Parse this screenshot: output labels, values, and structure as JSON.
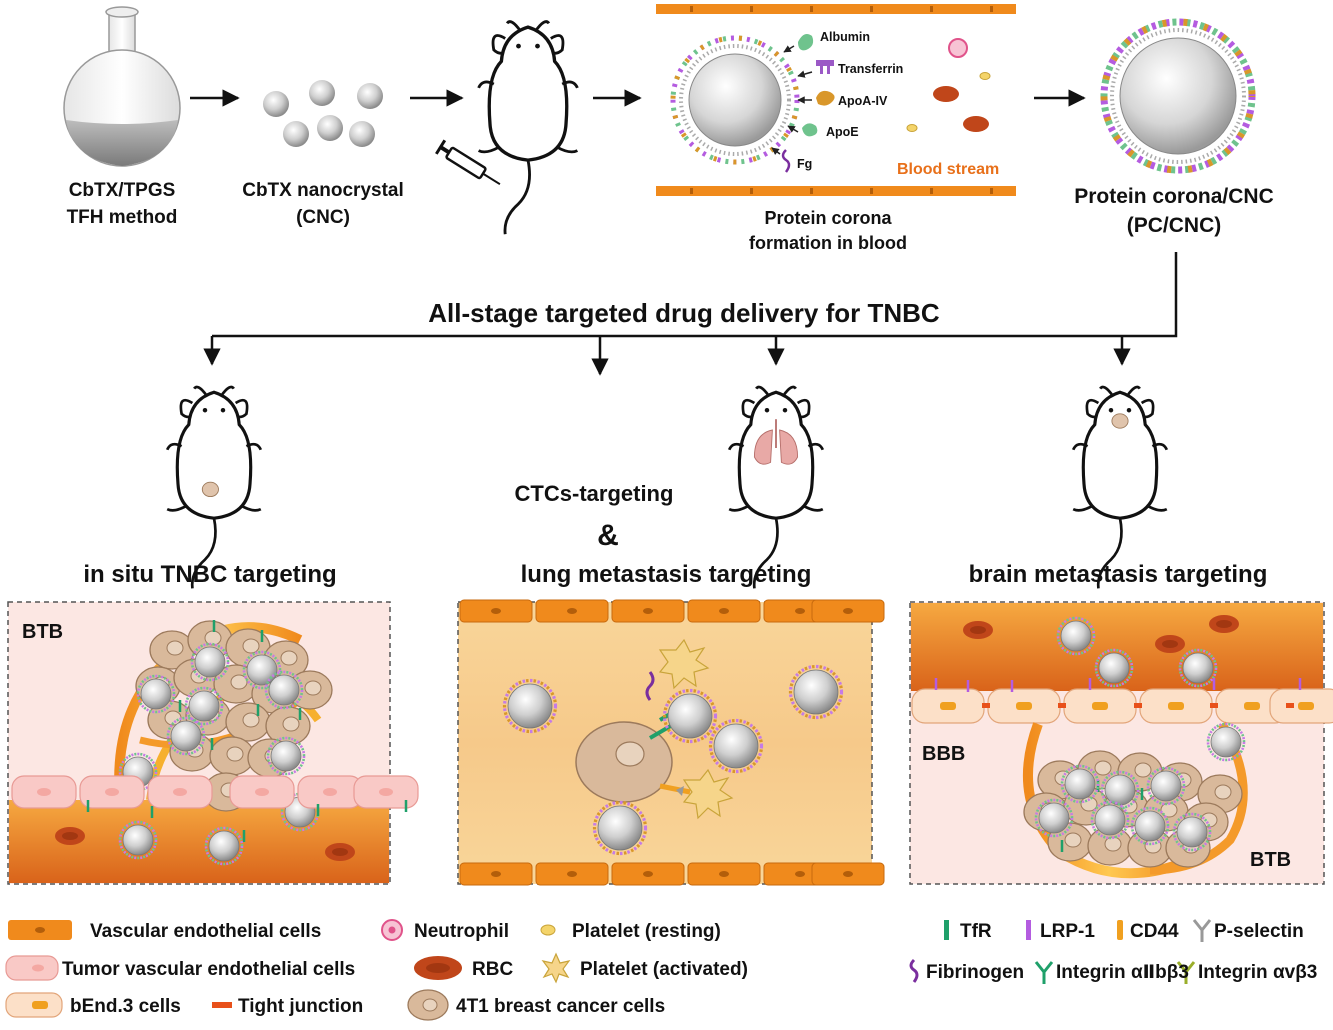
{
  "workflow": {
    "step1": {
      "line1": "CbTX/TPGS",
      "line2": "TFH method"
    },
    "step2": {
      "line1": "CbTX nanocrystal",
      "line2": "(CNC)"
    },
    "step4": {
      "line1": "Protein corona",
      "line2": "formation in blood"
    },
    "step5": {
      "line1": "Protein corona/CNC",
      "line2": "(PC/CNC)"
    },
    "proteins": [
      "Albumin",
      "Transferrin",
      "ApoA-IV",
      "ApoE",
      "Fg"
    ],
    "blood_stream": "Blood stream"
  },
  "headline": "All-stage targeted drug delivery for TNBC",
  "targets": {
    "insitu": "in situ TNBC targeting",
    "ctc_line1": "CTCs-targeting",
    "ctc_amp": "&",
    "ctc_line2": "lung metastasis targeting",
    "brain": "brain metastasis targeting"
  },
  "panel_labels": {
    "btb": "BTB",
    "bbb": "BBB"
  },
  "legend": {
    "left": [
      "Vascular endothelial cells",
      "Neutrophil",
      "Platelet (resting)",
      "Tumor vascular endothelial cells",
      "RBC",
      "Platelet (activated)",
      "bEnd.3 cells",
      "Tight junction",
      "4T1 breast cancer cells"
    ],
    "right": [
      "TfR",
      "LRP-1",
      "CD44",
      "P-selectin",
      "Fibrinogen",
      "Integrin αⅡbβ3",
      "Integrin αvβ3"
    ]
  },
  "colors": {
    "endothelial": "#F08A1C",
    "tumor_endothelial": "#F9C9C6",
    "tumor_cell": "#D9B99B",
    "rbc": "#C0461A",
    "tfr": "#1FA06A",
    "lrp1": "#B45CE0",
    "cd44": "#F0A020"
  }
}
